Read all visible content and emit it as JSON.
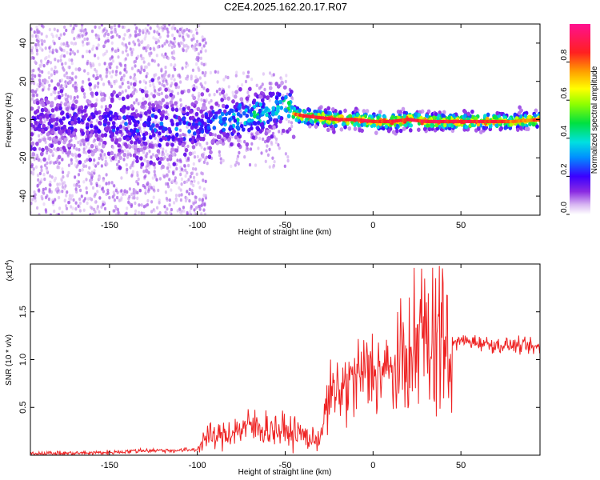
{
  "title": "C2E4.2025.162.20.17.R07",
  "chart_data": [
    {
      "type": "heatmap",
      "xlabel": "Height of straight line (km)",
      "ylabel": "Frequency (Hz)",
      "xlim": [
        -195,
        95
      ],
      "ylim": [
        -50,
        50
      ],
      "x_ticks": [
        -150,
        -100,
        -50,
        0,
        50
      ],
      "y_ticks": [
        -40,
        -20,
        0,
        20,
        40
      ],
      "colorbar": {
        "label": "Normalized spectral amplitude",
        "range": [
          0,
          1
        ],
        "ticks": [
          "0.0",
          "0.2",
          "0.4",
          "0.6",
          "0.8"
        ],
        "tick_values": [
          0,
          0.2,
          0.4,
          0.6,
          0.8
        ]
      },
      "ridge": {
        "x": [
          -195,
          -150,
          -120,
          -100,
          -80,
          -60,
          -50,
          -45,
          -40,
          -30,
          -20,
          -10,
          0,
          10,
          20,
          30,
          40,
          50,
          60,
          70,
          80,
          95
        ],
        "freq": [
          0,
          -2,
          -4,
          -3,
          0,
          4,
          8,
          3,
          2,
          1,
          0,
          0,
          -1,
          -1,
          0,
          -1,
          -1,
          -1,
          -1,
          -1,
          -1,
          0
        ],
        "amplitude": [
          0.2,
          0.25,
          0.3,
          0.3,
          0.45,
          0.45,
          0.5,
          0.8,
          0.85,
          0.9,
          0.9,
          0.9,
          0.88,
          0.88,
          0.9,
          0.9,
          0.9,
          0.9,
          0.9,
          0.85,
          0.8,
          0.85
        ]
      },
      "colors": {
        "low": "#e6d2f5",
        "mid": "#6a0dff",
        "high": "#ff2020"
      }
    },
    {
      "type": "line",
      "xlabel": "Height of straight line (km)",
      "ylabel": "SNR (10 * v/v)",
      "scale_label": "(x10",
      "scale_exp": "4",
      "scale_close": ")",
      "xlim": [
        -195,
        95
      ],
      "ylim": [
        0,
        2.0
      ],
      "x_ticks": [
        -150,
        -100,
        -50,
        0,
        50
      ],
      "y_ticks": [
        0.5,
        1.0,
        1.5
      ],
      "y_tick_labels": [
        "0.5",
        "1.0",
        "1.5"
      ],
      "series": [
        {
          "color": "#ee2222",
          "x": [
            -195,
            -170,
            -150,
            -130,
            -110,
            -100,
            -95,
            -90,
            -80,
            -70,
            -60,
            -50,
            -40,
            -35,
            -30,
            -25,
            -20,
            -10,
            0,
            10,
            20,
            25,
            30,
            35,
            40,
            45,
            50,
            60,
            70,
            80,
            95
          ],
          "y": [
            0.02,
            0.02,
            0.03,
            0.05,
            0.05,
            0.06,
            0.2,
            0.18,
            0.25,
            0.3,
            0.28,
            0.25,
            0.22,
            0.15,
            0.2,
            0.6,
            0.65,
            0.8,
            0.9,
            0.85,
            1.0,
            1.1,
            1.3,
            1.25,
            1.2,
            1.15,
            1.2,
            1.18,
            1.15,
            1.15,
            1.12
          ]
        }
      ]
    }
  ]
}
